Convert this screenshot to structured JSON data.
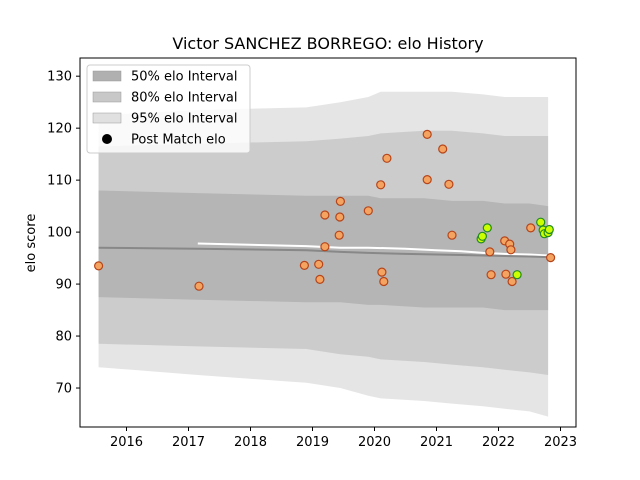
{
  "chart_data": {
    "type": "scatter",
    "title": "Victor SANCHEZ BORREGO: elo History",
    "xlabel": "",
    "ylabel": "elo score",
    "xlim": [
      2015.25,
      2023.25
    ],
    "ylim": [
      62.5,
      133.5
    ],
    "x_ticks": [
      2016,
      2017,
      2018,
      2019,
      2020,
      2021,
      2022,
      2023
    ],
    "y_ticks": [
      70,
      80,
      90,
      100,
      110,
      120,
      130
    ],
    "legend": {
      "position": "top-left",
      "entries": [
        {
          "label": "50% elo Interval",
          "color": "#b0b0b0",
          "kind": "patch"
        },
        {
          "label": "80% elo Interval",
          "color": "#c8c8c8",
          "kind": "patch"
        },
        {
          "label": "95% elo Interval",
          "color": "#e0e0e0",
          "kind": "patch"
        },
        {
          "label": "Post Match elo",
          "color": "#000000",
          "kind": "marker"
        }
      ]
    },
    "bands": [
      {
        "name": "95% elo Interval",
        "color": "#e0e0e0",
        "x": [
          2015.55,
          2017.15,
          2018.9,
          2019.45,
          2019.9,
          2020.1,
          2020.8,
          2021.25,
          2021.75,
          2022.1,
          2022.5,
          2022.8
        ],
        "upper": [
          122.5,
          123.5,
          124.0,
          125.0,
          126.0,
          127.0,
          127.0,
          127.0,
          126.5,
          126.0,
          126.0,
          126.0
        ],
        "lower": [
          74.0,
          72.5,
          71.0,
          70.0,
          68.5,
          68.0,
          67.5,
          67.0,
          66.5,
          66.0,
          65.5,
          64.5
        ]
      },
      {
        "name": "80% elo Interval",
        "color": "#c8c8c8",
        "x": [
          2015.55,
          2017.15,
          2018.9,
          2019.45,
          2019.9,
          2020.1,
          2020.8,
          2021.25,
          2021.75,
          2022.1,
          2022.5,
          2022.8
        ],
        "upper": [
          116.5,
          117.0,
          117.5,
          118.0,
          118.5,
          119.0,
          119.5,
          119.5,
          119.0,
          118.5,
          118.5,
          118.5
        ],
        "lower": [
          78.5,
          78.0,
          77.5,
          76.5,
          76.0,
          75.5,
          75.0,
          74.5,
          74.0,
          73.5,
          73.0,
          72.5
        ]
      },
      {
        "name": "50% elo Interval",
        "color": "#b0b0b0",
        "x": [
          2015.55,
          2017.15,
          2018.9,
          2019.45,
          2019.9,
          2020.1,
          2020.8,
          2021.25,
          2021.75,
          2022.1,
          2022.5,
          2022.8
        ],
        "upper": [
          108.0,
          107.5,
          107.0,
          107.0,
          107.0,
          106.5,
          106.5,
          106.0,
          106.0,
          105.5,
          105.5,
          105.0
        ],
        "lower": [
          87.5,
          87.0,
          86.5,
          86.5,
          86.0,
          86.0,
          85.5,
          85.5,
          85.5,
          85.0,
          85.0,
          85.0
        ]
      }
    ],
    "lines": [
      {
        "name": "mean",
        "color": "#ffffff",
        "x": [
          2017.15,
          2018.9,
          2019.45,
          2019.9,
          2020.5,
          2021.0,
          2021.4,
          2021.75,
          2022.1,
          2022.5,
          2022.8
        ],
        "y": [
          97.8,
          97.3,
          97.0,
          97.0,
          96.8,
          96.5,
          96.3,
          96.0,
          95.8,
          95.7,
          95.5
        ]
      },
      {
        "name": "baseline",
        "color": "#888888",
        "x": [
          2015.55,
          2017.15,
          2018.9,
          2019.45,
          2019.9,
          2020.5,
          2021.0,
          2021.4,
          2021.75,
          2022.1,
          2022.5,
          2022.8
        ],
        "y": [
          97.0,
          96.8,
          96.5,
          96.2,
          96.0,
          95.8,
          95.7,
          95.6,
          95.5,
          95.4,
          95.3,
          95.2
        ]
      }
    ],
    "points": [
      {
        "x": 2015.55,
        "y": 93.5,
        "color": "#f4a460"
      },
      {
        "x": 2017.17,
        "y": 89.6,
        "color": "#f4a460"
      },
      {
        "x": 2018.87,
        "y": 93.6,
        "color": "#f4a460"
      },
      {
        "x": 2019.1,
        "y": 93.8,
        "color": "#f4a460"
      },
      {
        "x": 2019.12,
        "y": 90.9,
        "color": "#f4a460"
      },
      {
        "x": 2019.2,
        "y": 103.3,
        "color": "#f4a460"
      },
      {
        "x": 2019.2,
        "y": 97.2,
        "color": "#f4a460"
      },
      {
        "x": 2019.45,
        "y": 105.9,
        "color": "#f4a460"
      },
      {
        "x": 2019.44,
        "y": 102.9,
        "color": "#f4a460"
      },
      {
        "x": 2019.43,
        "y": 99.4,
        "color": "#f4a460"
      },
      {
        "x": 2019.9,
        "y": 104.1,
        "color": "#f4a460"
      },
      {
        "x": 2020.1,
        "y": 109.1,
        "color": "#f4a460"
      },
      {
        "x": 2020.12,
        "y": 92.3,
        "color": "#f4a460"
      },
      {
        "x": 2020.15,
        "y": 90.5,
        "color": "#f4a460"
      },
      {
        "x": 2020.2,
        "y": 114.2,
        "color": "#f4a460"
      },
      {
        "x": 2020.85,
        "y": 118.8,
        "color": "#f4a460"
      },
      {
        "x": 2020.85,
        "y": 110.1,
        "color": "#f4a460"
      },
      {
        "x": 2021.1,
        "y": 116.0,
        "color": "#f4a460"
      },
      {
        "x": 2021.2,
        "y": 109.2,
        "color": "#f4a460"
      },
      {
        "x": 2021.25,
        "y": 99.4,
        "color": "#f4a460"
      },
      {
        "x": 2021.72,
        "y": 98.7,
        "color": "#ccff00"
      },
      {
        "x": 2021.74,
        "y": 99.2,
        "color": "#ccff00"
      },
      {
        "x": 2021.82,
        "y": 100.8,
        "color": "#ccff00"
      },
      {
        "x": 2021.86,
        "y": 96.2,
        "color": "#f4a460"
      },
      {
        "x": 2021.88,
        "y": 91.8,
        "color": "#f4a460"
      },
      {
        "x": 2022.1,
        "y": 98.3,
        "color": "#f4a460"
      },
      {
        "x": 2022.12,
        "y": 91.9,
        "color": "#f4a460"
      },
      {
        "x": 2022.18,
        "y": 97.7,
        "color": "#f4a460"
      },
      {
        "x": 2022.2,
        "y": 96.6,
        "color": "#f4a460"
      },
      {
        "x": 2022.22,
        "y": 90.5,
        "color": "#f4a460"
      },
      {
        "x": 2022.3,
        "y": 91.8,
        "color": "#ccff00"
      },
      {
        "x": 2022.52,
        "y": 100.8,
        "color": "#f4a460"
      },
      {
        "x": 2022.68,
        "y": 101.9,
        "color": "#ccff00"
      },
      {
        "x": 2022.72,
        "y": 100.4,
        "color": "#ccff00"
      },
      {
        "x": 2022.74,
        "y": 99.7,
        "color": "#ccff00"
      },
      {
        "x": 2022.8,
        "y": 99.9,
        "color": "#ccff00"
      },
      {
        "x": 2022.82,
        "y": 100.5,
        "color": "#ccff00"
      },
      {
        "x": 2022.84,
        "y": 95.1,
        "color": "#f4a460"
      }
    ],
    "grid": false
  }
}
